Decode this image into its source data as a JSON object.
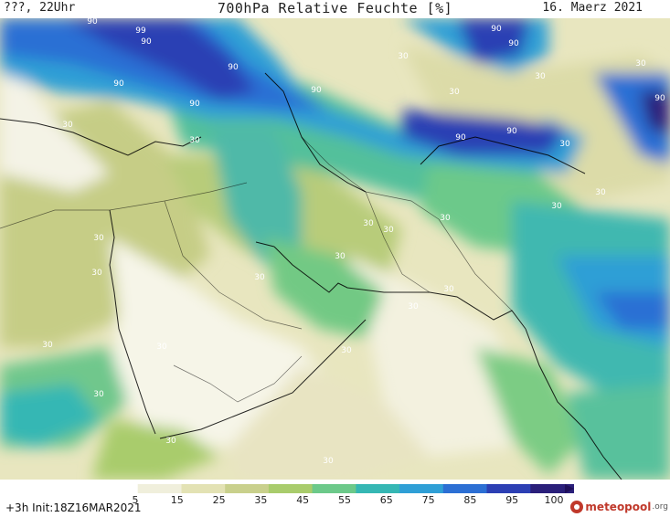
{
  "header": {
    "valid_time": "???, 22Uhr",
    "title": "700hPa Relative Feuchte [%]",
    "date": "16. Maerz 2021"
  },
  "legend": {
    "ticks": [
      "5",
      "15",
      "25",
      "35",
      "45",
      "55",
      "65",
      "75",
      "85",
      "95",
      "100"
    ],
    "colors": [
      "#ffffff",
      "#f0efdc",
      "#e3e2b4",
      "#c9d08c",
      "#a9cc6c",
      "#6cc98a",
      "#35b7b4",
      "#2f9fd6",
      "#2c6fd4",
      "#2c3fb4",
      "#2a1f7a"
    ]
  },
  "contour_labels": [
    "90",
    "99",
    "90",
    "90",
    "90",
    "90",
    "90",
    "90",
    "90",
    "90",
    "30",
    "90",
    "30",
    "30",
    "30",
    "30",
    "90",
    "30",
    "30",
    "30",
    "30",
    "30",
    "30",
    "30",
    "30",
    "30",
    "30",
    "30",
    "30",
    "30",
    "30",
    "30",
    "30",
    "30",
    "30",
    "30"
  ],
  "footer": {
    "run_info": "+3h  Init:18Z16MAR2021",
    "logo_text": "meteopool",
    "logo_suffix": ".org"
  }
}
